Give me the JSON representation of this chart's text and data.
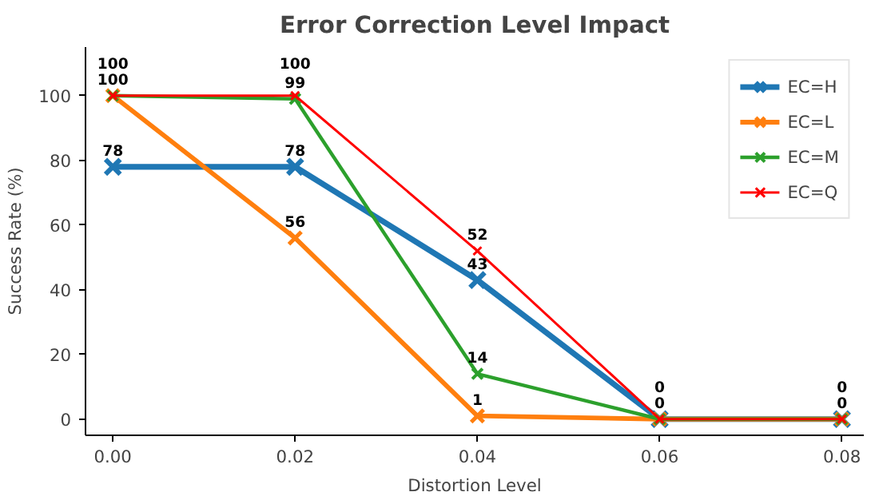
{
  "chart_data": {
    "type": "line",
    "title": "Error Correction Level Impact",
    "xlabel": "Distortion Level",
    "ylabel": "Success Rate (%)",
    "x": [
      0.0,
      0.02,
      0.04,
      0.06,
      0.08
    ],
    "series": [
      {
        "name": "EC=H",
        "color": "#1f77b4",
        "values": [
          78,
          78,
          43,
          0,
          0
        ],
        "value_labels": [
          "78",
          "78",
          "43",
          null,
          null
        ]
      },
      {
        "name": "EC=L",
        "color": "#ff7f0e",
        "values": [
          100,
          56,
          1,
          0,
          0
        ],
        "value_labels": [
          null,
          "56",
          "1",
          null,
          null
        ]
      },
      {
        "name": "EC=M",
        "color": "#2ca02c",
        "values": [
          100,
          99,
          14,
          0,
          0
        ],
        "value_labels": [
          "100",
          "99",
          "14",
          "0",
          "0"
        ]
      },
      {
        "name": "EC=Q",
        "color": "#ff0000",
        "values": [
          100,
          100,
          52,
          0,
          0
        ],
        "value_labels": [
          "100",
          "100",
          "52",
          "0",
          "0"
        ]
      }
    ],
    "xlim": [
      -0.003,
      0.0824
    ],
    "ylim": [
      -5,
      115
    ],
    "xticks": [
      {
        "value": 0.0,
        "label": "0.00"
      },
      {
        "value": 0.02,
        "label": "0.02"
      },
      {
        "value": 0.04,
        "label": "0.04"
      },
      {
        "value": 0.06,
        "label": "0.06"
      },
      {
        "value": 0.08,
        "label": "0.08"
      }
    ],
    "yticks": [
      0,
      20,
      40,
      60,
      80,
      100
    ],
    "marker": "cross",
    "line_style": "solid",
    "grid": false,
    "legend": "top right"
  }
}
